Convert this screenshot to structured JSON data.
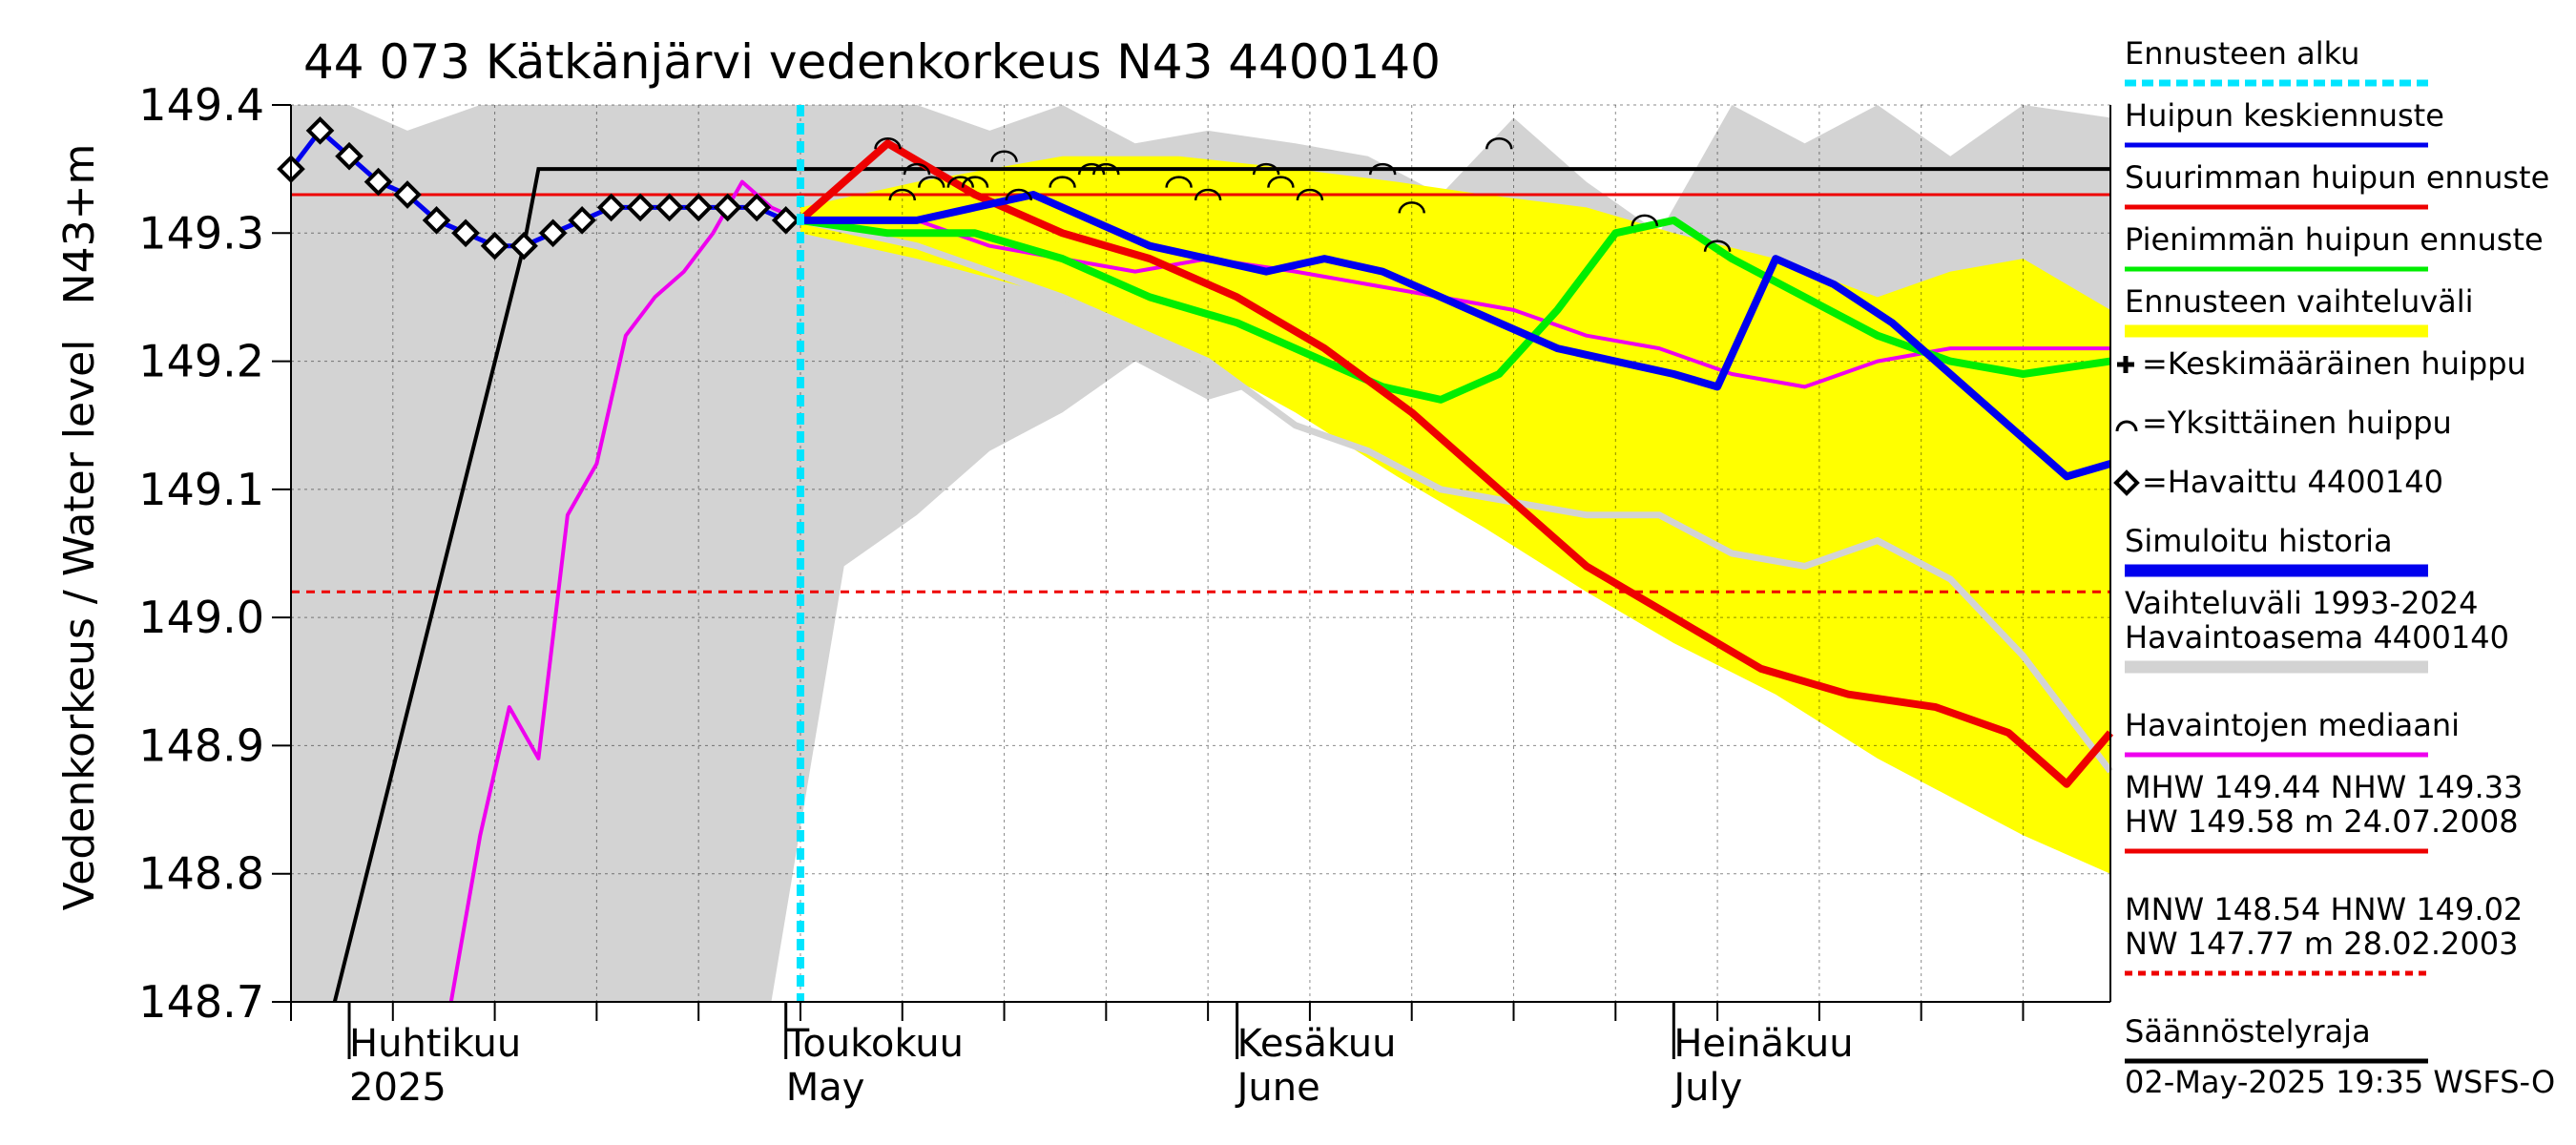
{
  "chart_data": {
    "type": "line",
    "title": "44 073 Kätkänjärvi vedenkorkeus N43 4400140",
    "ylabel_main": "Vedenkorkeus / Water level",
    "ylabel_unit": "N43+m",
    "ylim": [
      148.7,
      149.4
    ],
    "yticks": [
      148.7,
      148.8,
      148.9,
      149.0,
      149.1,
      149.2,
      149.3,
      149.4
    ],
    "ytick_labels": [
      "148.7",
      "148.8",
      "148.9",
      "149.0",
      "149.1",
      "149.2",
      "149.3",
      "149.4"
    ],
    "x_range": [
      "2025-03-28",
      "2025-07-31"
    ],
    "forecast_start": "2025-05-02",
    "month_labels": [
      {
        "date": "2025-04-01",
        "fi": "Huhtikuu",
        "en": "2025"
      },
      {
        "date": "2025-05-01",
        "fi": "Toukokuu",
        "en": "May"
      },
      {
        "date": "2025-06-01",
        "fi": "Kesäkuu",
        "en": "June"
      },
      {
        "date": "2025-07-01",
        "fi": "Heinäkuu",
        "en": "July"
      }
    ],
    "hlines": {
      "nhw": 149.33,
      "hnw": 149.02,
      "regulation_limit": 149.35
    },
    "regulation_limit_line": {
      "x": [
        "2025-03-31",
        "2025-04-13",
        "2025-04-14",
        "2025-07-31"
      ],
      "y": [
        148.7,
        149.29,
        149.35,
        149.35
      ]
    },
    "historical_range_upper": {
      "x": [
        "2025-03-28",
        "2025-04-01",
        "2025-04-05",
        "2025-04-10",
        "2025-04-14",
        "2025-04-20",
        "2025-04-25",
        "2025-04-30",
        "2025-05-05",
        "2025-05-10",
        "2025-05-15",
        "2025-05-20",
        "2025-05-25",
        "2025-05-30",
        "2025-06-05",
        "2025-06-10",
        "2025-06-15",
        "2025-06-20",
        "2025-06-25",
        "2025-06-30",
        "2025-07-05",
        "2025-07-10",
        "2025-07-15",
        "2025-07-20",
        "2025-07-25",
        "2025-07-31"
      ],
      "y": [
        149.4,
        149.4,
        149.38,
        149.4,
        149.4,
        149.4,
        149.4,
        149.4,
        149.4,
        149.4,
        149.38,
        149.4,
        149.37,
        149.38,
        149.37,
        149.36,
        149.33,
        149.39,
        149.34,
        149.3,
        149.4,
        149.37,
        149.4,
        149.36,
        149.4,
        149.39
      ]
    },
    "historical_range_lower": {
      "x": [
        "2025-03-28",
        "2025-04-01",
        "2025-04-05",
        "2025-04-10",
        "2025-04-14",
        "2025-04-20",
        "2025-04-25",
        "2025-04-30",
        "2025-05-05",
        "2025-05-10",
        "2025-05-15",
        "2025-05-20",
        "2025-05-25",
        "2025-05-30",
        "2025-06-05",
        "2025-06-10",
        "2025-06-15",
        "2025-06-20",
        "2025-06-25",
        "2025-06-30",
        "2025-07-05",
        "2025-07-10",
        "2025-07-15",
        "2025-07-20",
        "2025-07-25",
        "2025-07-31"
      ],
      "y": [
        148.7,
        148.7,
        148.7,
        148.7,
        148.7,
        148.7,
        148.7,
        148.7,
        149.04,
        149.08,
        149.13,
        149.16,
        149.2,
        149.17,
        149.19,
        149.2,
        149.21,
        149.23,
        149.22,
        149.19,
        149.18,
        149.18,
        149.19,
        149.2,
        149.2,
        149.2
      ]
    },
    "forecast_range_upper": {
      "x": [
        "2025-05-02",
        "2025-05-10",
        "2025-05-20",
        "2025-05-28",
        "2025-06-05",
        "2025-06-12",
        "2025-06-18",
        "2025-06-25",
        "2025-07-01",
        "2025-07-08",
        "2025-07-15",
        "2025-07-20",
        "2025-07-25",
        "2025-07-31"
      ],
      "y": [
        149.32,
        149.34,
        149.36,
        149.36,
        149.35,
        149.34,
        149.33,
        149.32,
        149.3,
        149.28,
        149.25,
        149.27,
        149.28,
        149.24
      ]
    },
    "forecast_range_lower": {
      "x": [
        "2025-05-02",
        "2025-05-10",
        "2025-05-20",
        "2025-05-28",
        "2025-06-05",
        "2025-06-12",
        "2025-06-18",
        "2025-06-25",
        "2025-07-01",
        "2025-07-08",
        "2025-07-15",
        "2025-07-20",
        "2025-07-25",
        "2025-07-31"
      ],
      "y": [
        149.3,
        149.28,
        149.25,
        149.21,
        149.16,
        149.11,
        149.07,
        149.02,
        148.98,
        148.94,
        148.89,
        148.86,
        148.83,
        148.8
      ]
    },
    "series": [
      {
        "name": "Huipun keskiennuste",
        "x": [
          "2025-05-02",
          "2025-05-06",
          "2025-05-10",
          "2025-05-14",
          "2025-05-18",
          "2025-05-22",
          "2025-05-26",
          "2025-05-30",
          "2025-06-03",
          "2025-06-07",
          "2025-06-11",
          "2025-06-15",
          "2025-06-19",
          "2025-06-23",
          "2025-06-27",
          "2025-07-01",
          "2025-07-04",
          "2025-07-08",
          "2025-07-12",
          "2025-07-16",
          "2025-07-20",
          "2025-07-24",
          "2025-07-28",
          "2025-07-31"
        ],
        "y": [
          149.31,
          149.31,
          149.31,
          149.32,
          149.33,
          149.31,
          149.29,
          149.28,
          149.27,
          149.28,
          149.27,
          149.25,
          149.23,
          149.21,
          149.2,
          149.19,
          149.18,
          149.28,
          149.26,
          149.23,
          149.19,
          149.15,
          149.11,
          149.12
        ]
      },
      {
        "name": "Suurimman huipun ennuste",
        "x": [
          "2025-05-02",
          "2025-05-08",
          "2025-05-14",
          "2025-05-20",
          "2025-05-26",
          "2025-06-01",
          "2025-06-07",
          "2025-06-13",
          "2025-06-19",
          "2025-06-25",
          "2025-07-01",
          "2025-07-07",
          "2025-07-13",
          "2025-07-19",
          "2025-07-24",
          "2025-07-28",
          "2025-07-31"
        ],
        "y": [
          149.31,
          149.37,
          149.33,
          149.3,
          149.28,
          149.25,
          149.21,
          149.16,
          149.1,
          149.04,
          149.0,
          148.96,
          148.94,
          148.93,
          148.91,
          148.87,
          148.91
        ]
      },
      {
        "name": "Pienimmän huipun ennuste",
        "x": [
          "2025-05-02",
          "2025-05-08",
          "2025-05-14",
          "2025-05-20",
          "2025-05-26",
          "2025-06-01",
          "2025-06-07",
          "2025-06-11",
          "2025-06-15",
          "2025-06-19",
          "2025-06-23",
          "2025-06-27",
          "2025-07-01",
          "2025-07-05",
          "2025-07-10",
          "2025-07-15",
          "2025-07-20",
          "2025-07-25",
          "2025-07-31"
        ],
        "y": [
          149.31,
          149.3,
          149.3,
          149.28,
          149.25,
          149.23,
          149.2,
          149.18,
          149.17,
          149.19,
          149.24,
          149.3,
          149.31,
          149.28,
          149.25,
          149.22,
          149.2,
          149.19,
          149.2
        ]
      },
      {
        "name": "Havaintojen mediaani",
        "x": [
          "2025-04-08",
          "2025-04-10",
          "2025-04-12",
          "2025-04-14",
          "2025-04-16",
          "2025-04-18",
          "2025-04-20",
          "2025-04-22",
          "2025-04-24",
          "2025-04-26",
          "2025-04-28",
          "2025-04-30",
          "2025-05-02",
          "2025-05-06",
          "2025-05-10",
          "2025-05-15",
          "2025-05-20",
          "2025-05-25",
          "2025-05-30",
          "2025-06-05",
          "2025-06-10",
          "2025-06-15",
          "2025-06-20",
          "2025-06-25",
          "2025-06-30",
          "2025-07-05",
          "2025-07-10",
          "2025-07-15",
          "2025-07-20",
          "2025-07-25",
          "2025-07-31"
        ],
        "y": [
          148.7,
          148.83,
          148.93,
          148.89,
          149.08,
          149.12,
          149.22,
          149.25,
          149.27,
          149.3,
          149.34,
          149.32,
          149.31,
          149.31,
          149.31,
          149.29,
          149.28,
          149.27,
          149.28,
          149.27,
          149.26,
          149.25,
          149.24,
          149.22,
          149.21,
          149.19,
          149.18,
          149.2,
          149.21,
          149.21,
          149.21
        ]
      },
      {
        "name": "Havaittu 4400140",
        "x": [
          "2025-03-28",
          "2025-03-30",
          "2025-04-01",
          "2025-04-03",
          "2025-04-05",
          "2025-04-07",
          "2025-04-09",
          "2025-04-11",
          "2025-04-13",
          "2025-04-15",
          "2025-04-17",
          "2025-04-19",
          "2025-04-21",
          "2025-04-23",
          "2025-04-25",
          "2025-04-27",
          "2025-04-29",
          "2025-05-01"
        ],
        "y": [
          149.35,
          149.38,
          149.36,
          149.34,
          149.33,
          149.31,
          149.3,
          149.29,
          149.29,
          149.3,
          149.31,
          149.32,
          149.32,
          149.32,
          149.32,
          149.32,
          149.32,
          149.31
        ]
      }
    ],
    "simulated_history_grey": {
      "x": [
        "2025-05-02",
        "2025-05-10",
        "2025-05-20",
        "2025-05-30",
        "2025-06-05",
        "2025-06-10",
        "2025-06-15",
        "2025-06-20",
        "2025-06-25",
        "2025-06-30",
        "2025-07-05",
        "2025-07-10",
        "2025-07-15",
        "2025-07-20",
        "2025-07-25",
        "2025-07-31"
      ],
      "y": [
        149.31,
        149.29,
        149.25,
        149.2,
        149.15,
        149.13,
        149.1,
        149.09,
        149.08,
        149.08,
        149.05,
        149.04,
        149.06,
        149.03,
        148.97,
        148.88
      ]
    },
    "individual_peaks": {
      "x": [
        "2025-05-08",
        "2025-05-09",
        "2025-05-10",
        "2025-05-11",
        "2025-05-13",
        "2025-05-14",
        "2025-05-16",
        "2025-05-17",
        "2025-05-20",
        "2025-05-22",
        "2025-05-23",
        "2025-05-28",
        "2025-05-30",
        "2025-06-03",
        "2025-06-04",
        "2025-06-06",
        "2025-06-11",
        "2025-06-13",
        "2025-06-19",
        "2025-06-29",
        "2025-07-04"
      ],
      "y": [
        149.37,
        149.33,
        149.35,
        149.34,
        149.34,
        149.34,
        149.36,
        149.33,
        149.34,
        149.35,
        149.35,
        149.34,
        149.33,
        149.35,
        149.34,
        149.33,
        149.35,
        149.32,
        149.37,
        149.31,
        149.29
      ]
    },
    "legend": [
      {
        "key": "forecast_start",
        "label": "Ennusteen alku",
        "color": "#00e5ff",
        "style": "dashed"
      },
      {
        "key": "mean",
        "label": "Huipun keskiennuste",
        "color": "#0000ee",
        "style": "line"
      },
      {
        "key": "max",
        "label": "Suurimman huipun ennuste",
        "color": "#ee0000",
        "style": "line"
      },
      {
        "key": "min",
        "label": "Pienimmän huipun ennuste",
        "color": "#00ee00",
        "style": "line"
      },
      {
        "key": "band",
        "label": "Ennusteen vaihteluväli",
        "color": "#ffff00",
        "style": "line"
      },
      {
        "key": "mean_peak",
        "label": "=Keskimääräinen huippu",
        "color": "#000000",
        "style": "plus"
      },
      {
        "key": "single_peak",
        "label": "=Yksittäinen huippu",
        "color": "#000000",
        "style": "arc"
      },
      {
        "key": "observed",
        "label": "=Havaittu 4400140",
        "color": "#000000",
        "style": "diamond"
      },
      {
        "key": "simulated",
        "label": "Simuloitu historia",
        "color": "#0000ee",
        "style": "line"
      },
      {
        "key": "range",
        "label": "Vaihteluväli 1993-2024\n Havaintoasema 4400140",
        "color": "#d3d3d3",
        "style": "line"
      },
      {
        "key": "median",
        "label": "Havaintojen mediaani",
        "color": "#ee00ee",
        "style": "line"
      },
      {
        "key": "high",
        "label": "MHW 149.44 NHW 149.33\nHW 149.58 m 24.07.2008",
        "color": "#ee0000",
        "style": "line"
      },
      {
        "key": "low",
        "label": "MNW 148.54 HNW 149.02\nNW 147.77 m 28.02.2003",
        "color": "#ee0000",
        "style": "dashed"
      },
      {
        "key": "reg",
        "label": "Säännöstelyraja",
        "color": "#000000",
        "style": "line"
      }
    ],
    "timestamp": "02-May-2025 19:35 WSFS-O"
  }
}
